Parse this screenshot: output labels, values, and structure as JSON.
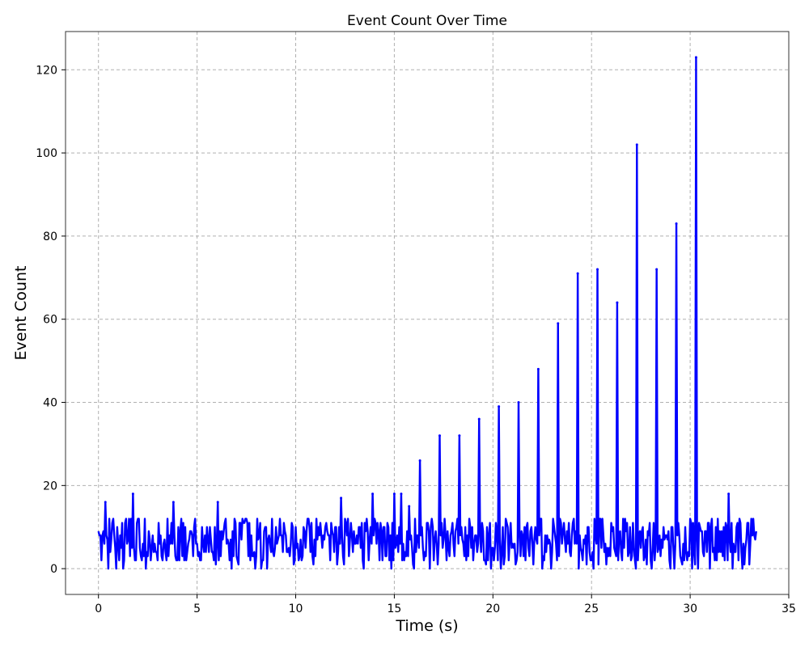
{
  "chart_data": {
    "type": "line",
    "title": "Event Count Over Time",
    "xlabel": "Time (s)",
    "ylabel": "Event Count",
    "xlim": [
      -1.67,
      35
    ],
    "ylim": [
      -6.2,
      129.2
    ],
    "xticks": [
      0,
      5,
      10,
      15,
      20,
      25,
      30,
      35
    ],
    "yticks": [
      0,
      20,
      40,
      60,
      80,
      100,
      120
    ],
    "grid": true,
    "legend": "none",
    "sample_interval": 0.05,
    "x_start": 0,
    "x_end": 33.35,
    "color": "#0000ff",
    "baseline_level": [
      2,
      12
    ],
    "peaks": [
      {
        "x": 0.35,
        "y": 16
      },
      {
        "x": 1.75,
        "y": 18
      },
      {
        "x": 3.8,
        "y": 16
      },
      {
        "x": 6.05,
        "y": 16
      },
      {
        "x": 12.3,
        "y": 17
      },
      {
        "x": 13.9,
        "y": 18
      },
      {
        "x": 15.0,
        "y": 18
      },
      {
        "x": 15.35,
        "y": 18
      },
      {
        "x": 15.75,
        "y": 15
      },
      {
        "x": 16.3,
        "y": 26
      },
      {
        "x": 17.3,
        "y": 32
      },
      {
        "x": 18.3,
        "y": 32
      },
      {
        "x": 19.3,
        "y": 36
      },
      {
        "x": 20.3,
        "y": 39
      },
      {
        "x": 21.3,
        "y": 40
      },
      {
        "x": 22.3,
        "y": 48
      },
      {
        "x": 23.3,
        "y": 59
      },
      {
        "x": 24.3,
        "y": 71
      },
      {
        "x": 25.3,
        "y": 72
      },
      {
        "x": 26.3,
        "y": 64
      },
      {
        "x": 27.3,
        "y": 102
      },
      {
        "x": 28.3,
        "y": 72
      },
      {
        "x": 29.3,
        "y": 83
      },
      {
        "x": 30.3,
        "y": 123
      },
      {
        "x": 31.95,
        "y": 18
      }
    ]
  }
}
